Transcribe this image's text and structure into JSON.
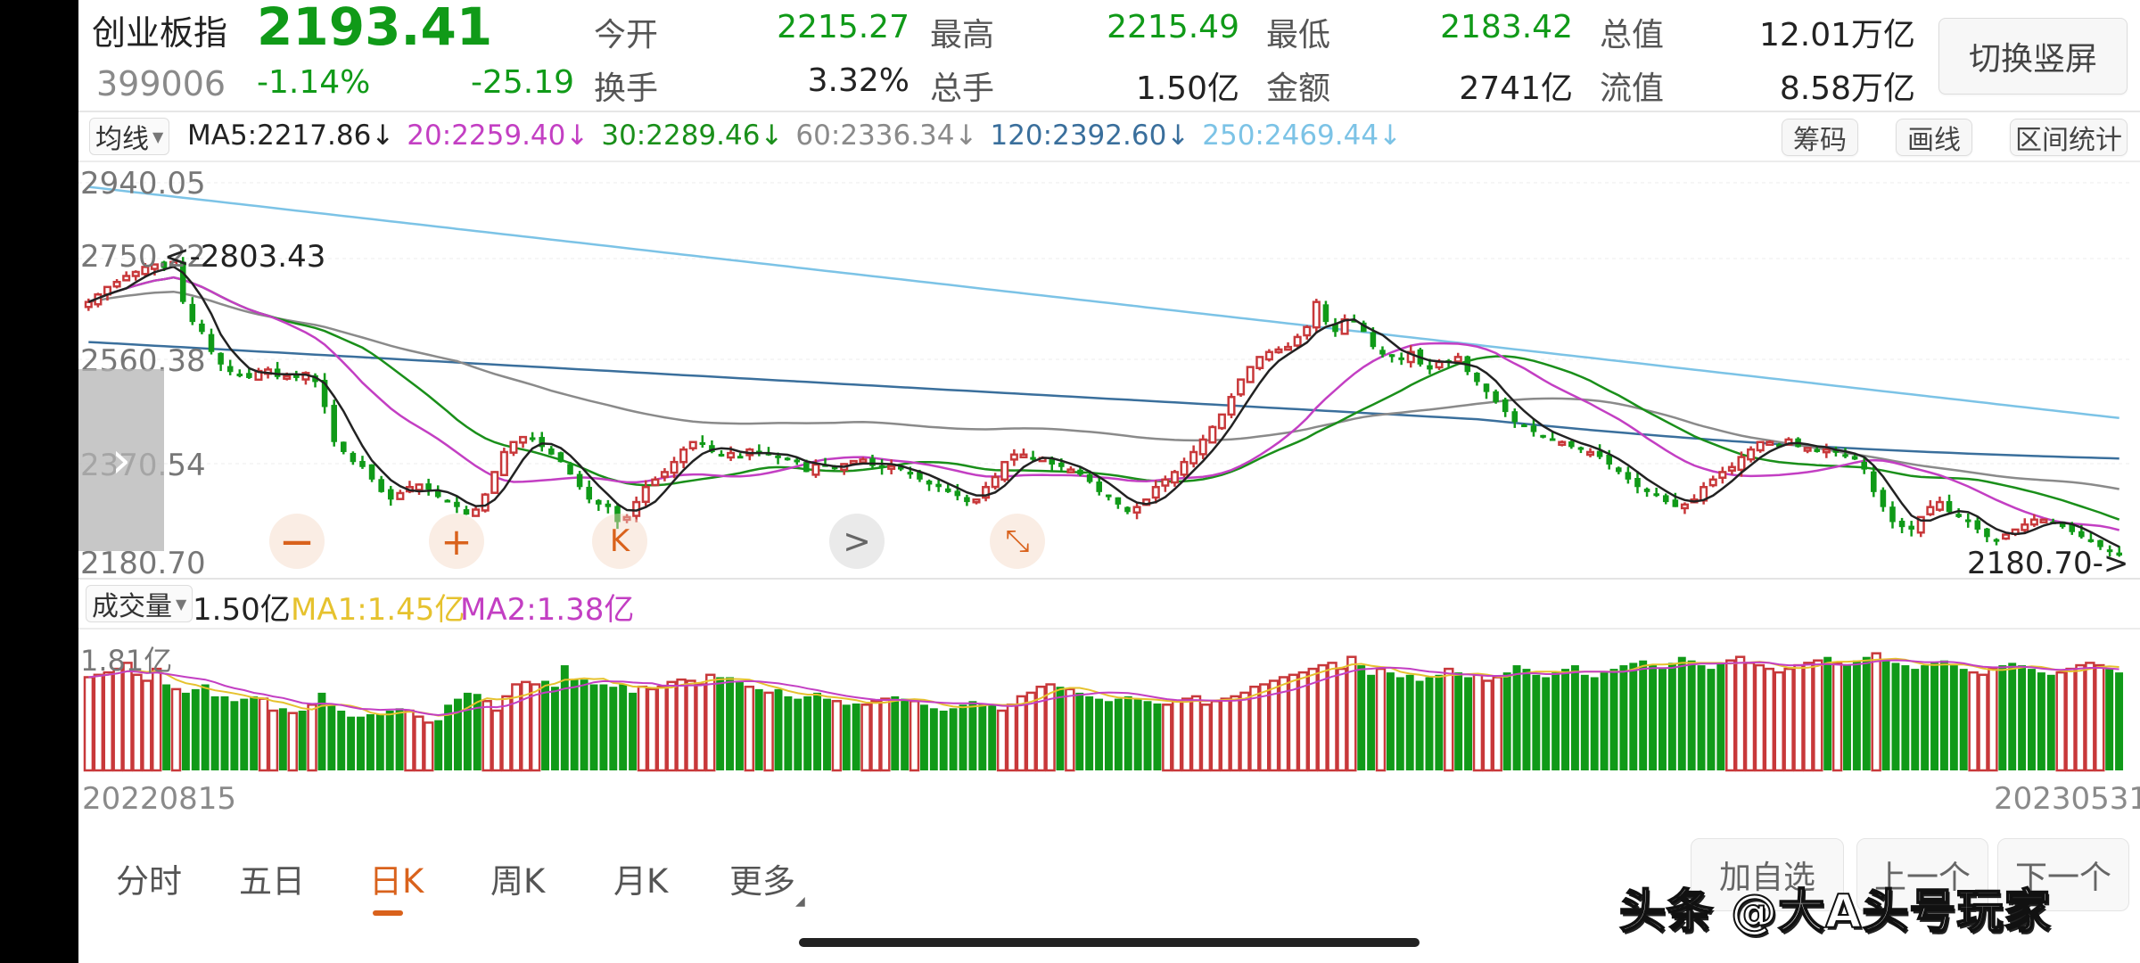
{
  "header": {
    "name": "创业板指",
    "code": "399006",
    "price": "2193.41",
    "change_pct": "-1.14%",
    "change_abs": "-25.19",
    "stats": [
      {
        "label": "今开",
        "value": "2215.27",
        "color": "green"
      },
      {
        "label": "最高",
        "value": "2215.49",
        "color": "green"
      },
      {
        "label": "最低",
        "value": "2183.42",
        "color": "green"
      },
      {
        "label": "总值",
        "value": "12.01万亿",
        "color": "dark"
      },
      {
        "label": "换手",
        "value": "3.32%",
        "color": "dark"
      },
      {
        "label": "总手",
        "value": "1.50亿",
        "color": "dark"
      },
      {
        "label": "金额",
        "value": "2741亿",
        "color": "dark"
      },
      {
        "label": "流值",
        "value": "8.58万亿",
        "color": "dark"
      }
    ],
    "switch_button": "切换竖屏"
  },
  "ma_bar": {
    "selector": "均线",
    "items": [
      {
        "text": "MA5:2217.86↓",
        "color": "#222222"
      },
      {
        "text": "20:2259.40↓",
        "color": "#c33fc3"
      },
      {
        "text": "30:2289.46↓",
        "color": "#1a8f1a"
      },
      {
        "text": "60:2336.34↓",
        "color": "#8a8a8a"
      },
      {
        "text": "120:2392.60↓",
        "color": "#3a6f9c"
      },
      {
        "text": "250:2469.44↓",
        "color": "#7cc3e6"
      }
    ],
    "buttons": [
      "筹码",
      "画线",
      "区间统计"
    ]
  },
  "main_chart": {
    "axis_labels": [
      "2940.05",
      "2750.22",
      "2560.38",
      "2370.54",
      "2180.70"
    ],
    "high_marker": "<-2803.43",
    "low_marker": "2180.70->",
    "controls": [
      {
        "name": "zoom-out",
        "glyph": "—"
      },
      {
        "name": "zoom-in",
        "glyph": "+"
      },
      {
        "name": "scroll-left",
        "glyph": "K"
      },
      {
        "name": "scroll-right",
        "glyph": ">"
      },
      {
        "name": "collapse",
        "glyph": "⤡"
      }
    ],
    "side_handle_glyph": "›"
  },
  "volume": {
    "selector": "成交量",
    "value": "1.50亿",
    "ma1": "MA1:1.45亿",
    "ma2": "MA2:1.38亿",
    "ma1_color": "#e6c22e",
    "ma2_color": "#c33fc3",
    "axis_max": "1.81亿"
  },
  "dates": {
    "start": "20220815",
    "end": "20230531"
  },
  "tabs": [
    {
      "label": "分时",
      "active": false
    },
    {
      "label": "五日",
      "active": false
    },
    {
      "label": "日K",
      "active": true
    },
    {
      "label": "周K",
      "active": false
    },
    {
      "label": "月K",
      "active": false
    },
    {
      "label": "更多",
      "active": false
    }
  ],
  "bottom_buttons": [
    "加自选",
    "上一个",
    "下一个"
  ],
  "watermark": "头条 @大A头号玩家",
  "colors": {
    "up": "#c8383a",
    "down": "#109a18",
    "accent": "#d9621c",
    "ma5": "#222222",
    "ma20": "#c33fc3",
    "ma30": "#1a8f1a",
    "ma60": "#8a8a8a",
    "ma120": "#3a6f9c",
    "ma250": "#7cc3e6"
  },
  "chart_data": {
    "type": "candlestick",
    "title": "创业板指 日K",
    "x_range": [
      "20220815",
      "20230531"
    ],
    "ylim": [
      2180.7,
      2940.05
    ],
    "y_ticks": [
      2940.05,
      2750.22,
      2560.38,
      2370.54,
      2180.7
    ],
    "annotations": {
      "period_high": 2803.43,
      "period_low": 2180.7
    },
    "closes": [
      2700,
      2715,
      2730,
      2740,
      2752,
      2760,
      2770,
      2775,
      2768,
      2780,
      2700,
      2660,
      2640,
      2600,
      2575,
      2560,
      2555,
      2548,
      2562,
      2565,
      2550,
      2552,
      2548,
      2558,
      2540,
      2490,
      2420,
      2400,
      2380,
      2370,
      2345,
      2320,
      2305,
      2318,
      2330,
      2335,
      2325,
      2310,
      2300,
      2290,
      2275,
      2285,
      2315,
      2360,
      2400,
      2420,
      2430,
      2425,
      2410,
      2395,
      2380,
      2355,
      2330,
      2305,
      2295,
      2290,
      2260,
      2270,
      2300,
      2330,
      2345,
      2360,
      2380,
      2405,
      2420,
      2418,
      2400,
      2395,
      2398,
      2392,
      2405,
      2400,
      2395,
      2388,
      2385,
      2380,
      2360,
      2375,
      2372,
      2370,
      2376,
      2382,
      2385,
      2372,
      2368,
      2372,
      2365,
      2355,
      2345,
      2335,
      2330,
      2320,
      2312,
      2300,
      2305,
      2330,
      2350,
      2380,
      2395,
      2395,
      2385,
      2388,
      2375,
      2370,
      2365,
      2355,
      2340,
      2320,
      2310,
      2295,
      2280,
      2290,
      2305,
      2330,
      2345,
      2360,
      2380,
      2400,
      2425,
      2450,
      2475,
      2510,
      2545,
      2570,
      2590,
      2600,
      2605,
      2610,
      2630,
      2650,
      2700,
      2660,
      2640,
      2665,
      2660,
      2640,
      2610,
      2595,
      2590,
      2585,
      2600,
      2575,
      2565,
      2580,
      2580,
      2590,
      2560,
      2540,
      2520,
      2500,
      2480,
      2460,
      2450,
      2440,
      2430,
      2425,
      2420,
      2410,
      2405,
      2400,
      2390,
      2375,
      2360,
      2345,
      2330,
      2320,
      2315,
      2300,
      2290,
      2295,
      2305,
      2330,
      2345,
      2360,
      2370,
      2390,
      2405,
      2420,
      2420,
      2415,
      2425,
      2410,
      2408,
      2400,
      2405,
      2400,
      2395,
      2385,
      2365,
      2320,
      2290,
      2260,
      2250,
      2245,
      2270,
      2290,
      2300,
      2280,
      2270,
      2260,
      2245,
      2230,
      2225,
      2235,
      2245,
      2255,
      2265,
      2265,
      2260,
      2250,
      2240,
      2230,
      2220,
      2210,
      2200,
      2193
    ],
    "ma_series": [
      "MA5",
      "MA20",
      "MA30",
      "MA60",
      "MA120",
      "MA250"
    ],
    "ma_last": {
      "MA5": 2217.86,
      "MA20": 2259.4,
      "MA30": 2289.46,
      "MA60": 2336.34,
      "MA120": 2392.6,
      "MA250": 2469.44
    },
    "volume_max": "1.81亿",
    "volume_last": "1.50亿",
    "volume_ma": {
      "MA1": "1.45亿",
      "MA2": "1.38亿"
    },
    "volume_rel": [
      0.78,
      0.8,
      0.82,
      0.85,
      0.9,
      0.8,
      0.75,
      0.85,
      0.72,
      0.68,
      0.65,
      0.68,
      0.72,
      0.62,
      0.62,
      0.58,
      0.6,
      0.62,
      0.6,
      0.5,
      0.52,
      0.48,
      0.5,
      0.55,
      0.65,
      0.55,
      0.5,
      0.45,
      0.45,
      0.47,
      0.47,
      0.5,
      0.52,
      0.5,
      0.45,
      0.4,
      0.42,
      0.55,
      0.6,
      0.65,
      0.64,
      0.58,
      0.5,
      0.62,
      0.72,
      0.74,
      0.72,
      0.75,
      0.7,
      0.88,
      0.76,
      0.76,
      0.72,
      0.72,
      0.7,
      0.72,
      0.65,
      0.7,
      0.68,
      0.7,
      0.74,
      0.76,
      0.75,
      0.72,
      0.8,
      0.78,
      0.78,
      0.74,
      0.7,
      0.68,
      0.65,
      0.68,
      0.62,
      0.6,
      0.62,
      0.65,
      0.6,
      0.58,
      0.55,
      0.56,
      0.55,
      0.58,
      0.6,
      0.62,
      0.6,
      0.58,
      0.55,
      0.52,
      0.5,
      0.52,
      0.55,
      0.58,
      0.56,
      0.55,
      0.5,
      0.55,
      0.62,
      0.65,
      0.7,
      0.72,
      0.7,
      0.68,
      0.65,
      0.62,
      0.6,
      0.58,
      0.6,
      0.62,
      0.6,
      0.58,
      0.56,
      0.55,
      0.58,
      0.6,
      0.62,
      0.55,
      0.58,
      0.6,
      0.62,
      0.65,
      0.7,
      0.72,
      0.75,
      0.78,
      0.8,
      0.82,
      0.85,
      0.88,
      0.9,
      0.85,
      0.95,
      0.88,
      0.8,
      0.85,
      0.82,
      0.78,
      0.8,
      0.75,
      0.78,
      0.8,
      0.85,
      0.82,
      0.78,
      0.8,
      0.75,
      0.78,
      0.82,
      0.88,
      0.85,
      0.8,
      0.78,
      0.82,
      0.85,
      0.88,
      0.8,
      0.78,
      0.82,
      0.85,
      0.88,
      0.9,
      0.92,
      0.88,
      0.85,
      0.9,
      0.95,
      0.92,
      0.88,
      0.85,
      0.9,
      0.92,
      0.95,
      0.9,
      0.88,
      0.85,
      0.82,
      0.85,
      0.88,
      0.9,
      0.92,
      0.95,
      0.9,
      0.88,
      0.92,
      0.95,
      0.98,
      0.92,
      0.9,
      0.88,
      0.85,
      0.88,
      0.9,
      0.92,
      0.88,
      0.85,
      0.82,
      0.8,
      0.85,
      0.88,
      0.9,
      0.88,
      0.85,
      0.82,
      0.8,
      0.82,
      0.85,
      0.88,
      0.9,
      0.88,
      0.85,
      0.82
    ]
  }
}
